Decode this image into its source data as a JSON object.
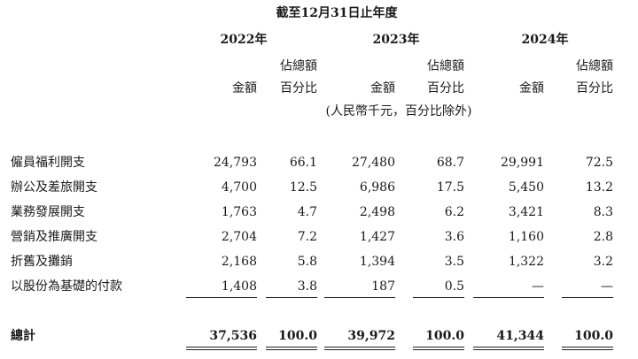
{
  "header": {
    "period": "截至12月31日止年度",
    "years": [
      "2022年",
      "2023年",
      "2024年"
    ],
    "amount_label": "金額",
    "pct_label_line1": "佔總額",
    "pct_label_line2": "百分比",
    "unit_note": "(人民幣千元，百分比除外)"
  },
  "rows": [
    {
      "label": "僱員福利開支",
      "cells": [
        "24,793",
        "66.1",
        "27,480",
        "68.7",
        "29,991",
        "72.5"
      ]
    },
    {
      "label": "辦公及差旅開支",
      "cells": [
        "4,700",
        "12.5",
        "6,986",
        "17.5",
        "5,450",
        "13.2"
      ]
    },
    {
      "label": "業務發展開支",
      "cells": [
        "1,763",
        "4.7",
        "2,498",
        "6.2",
        "3,421",
        "8.3"
      ]
    },
    {
      "label": "營銷及推廣開支",
      "cells": [
        "2,704",
        "7.2",
        "1,427",
        "3.6",
        "1,160",
        "2.8"
      ]
    },
    {
      "label": "折舊及攤銷",
      "cells": [
        "2,168",
        "5.8",
        "1,394",
        "3.5",
        "1,322",
        "3.2"
      ]
    },
    {
      "label": "以股份為基礎的付款",
      "cells": [
        "1,408",
        "3.8",
        "187",
        "0.5",
        "—",
        "—"
      ]
    }
  ],
  "total": {
    "label": "總計",
    "cells": [
      "37,536",
      "100.0",
      "39,972",
      "100.0",
      "41,344",
      "100.0"
    ]
  }
}
